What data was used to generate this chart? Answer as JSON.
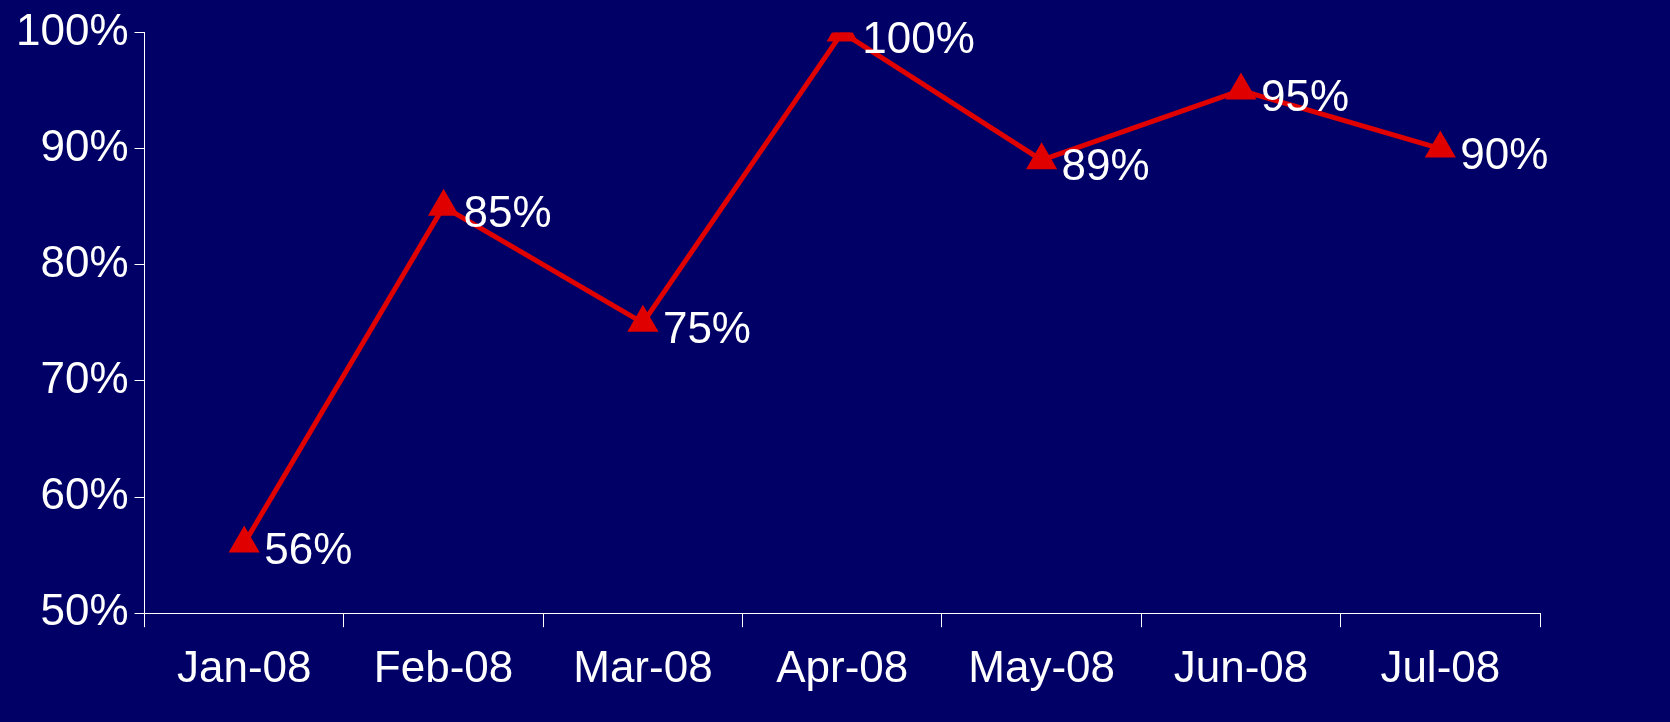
{
  "chart_data": {
    "type": "line",
    "categories": [
      "Jan-08",
      "Feb-08",
      "Mar-08",
      "Apr-08",
      "May-08",
      "Jun-08",
      "Jul-08"
    ],
    "series": [
      {
        "color": "#e00000",
        "values": [
          56,
          85,
          75,
          100,
          89,
          95,
          90
        ],
        "value_labels": [
          "56%",
          "85%",
          "75%",
          "100%",
          "89%",
          "95%",
          "90%"
        ]
      }
    ],
    "ylim": [
      50,
      100
    ],
    "yticks": [
      {
        "value": 50,
        "label": "50%"
      },
      {
        "value": 60,
        "label": "60%"
      },
      {
        "value": 70,
        "label": "70%"
      },
      {
        "value": 80,
        "label": "80%"
      },
      {
        "value": 90,
        "label": "90%"
      },
      {
        "value": 100,
        "label": "100%"
      }
    ],
    "grid": false,
    "legend": false,
    "marker": "triangle",
    "line_style": "solid"
  }
}
